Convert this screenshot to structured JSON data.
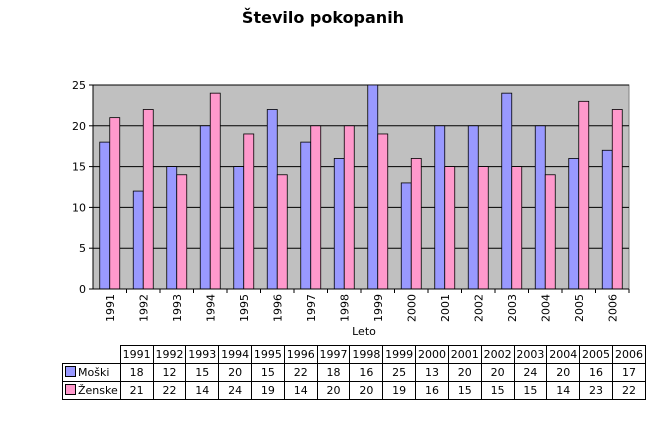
{
  "colors": {
    "plot_background": "#c0c0c0",
    "series": [
      "#9999ff",
      "#ff99cc"
    ]
  },
  "chart_data": {
    "type": "bar",
    "title": "Število pokopanih",
    "xlabel": "Leto",
    "ylabel": "",
    "ylim": [
      0,
      25
    ],
    "yticks": [
      0,
      5,
      10,
      15,
      20,
      25
    ],
    "grid": true,
    "legend": "data table below the chart",
    "categories": [
      "1991",
      "1992",
      "1993",
      "1994",
      "1995",
      "1996",
      "1997",
      "1998",
      "1999",
      "2000",
      "2001",
      "2002",
      "2003",
      "2004",
      "2005",
      "2006"
    ],
    "series": [
      {
        "name": "Moški",
        "values": [
          18,
          12,
          15,
          20,
          15,
          22,
          18,
          16,
          25,
          13,
          20,
          20,
          24,
          20,
          16,
          17
        ]
      },
      {
        "name": "Ženske",
        "values": [
          21,
          22,
          14,
          24,
          19,
          14,
          20,
          20,
          19,
          16,
          15,
          15,
          15,
          14,
          23,
          22
        ]
      }
    ]
  }
}
